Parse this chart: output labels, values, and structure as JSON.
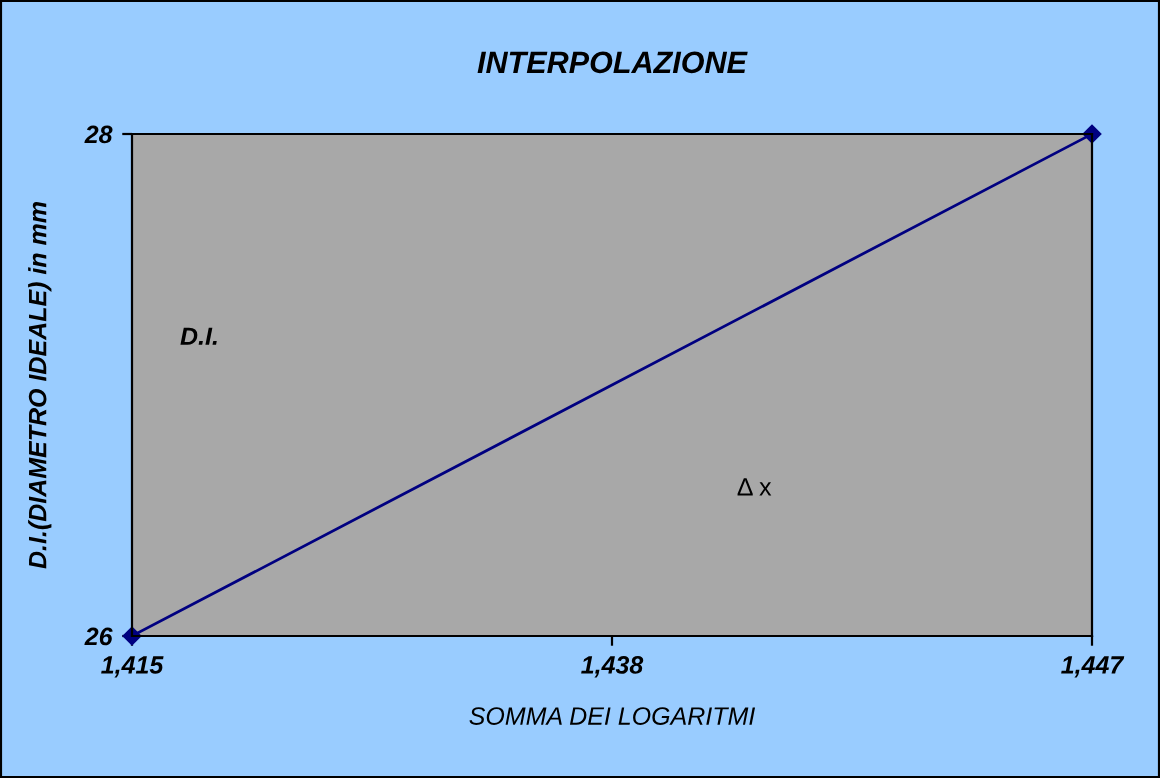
{
  "chart_data": {
    "type": "line",
    "title": "INTERPOLAZIONE",
    "xlabel": "SOMMA DEI LOGARITMI",
    "ylabel": "D.I.(DIAMETRO IDEALE) in mm",
    "categories": [
      "1,415",
      "1,438",
      "1,447"
    ],
    "series": [
      {
        "color": "#000080",
        "values": [
          26,
          null,
          28
        ]
      }
    ],
    "ylim": [
      26,
      28
    ],
    "yticks": [
      26,
      28
    ],
    "grid": false,
    "marker": "diamond",
    "line_style": "solid",
    "annotations": [
      "D.I.",
      "Δ x"
    ]
  }
}
